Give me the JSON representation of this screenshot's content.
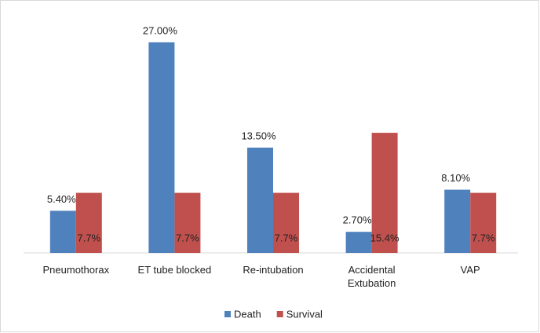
{
  "chart_data": {
    "type": "bar",
    "categories": [
      "Pneumothorax",
      "ET tube blocked",
      "Re-intubation",
      "Accidental Extubation",
      "VAP"
    ],
    "series": [
      {
        "name": "Death",
        "color": "#4f81bd",
        "values": [
          5.4,
          27,
          13.5,
          2.7,
          8.1
        ],
        "value_labels": [
          "5.40%",
          "27.00%",
          "13.50%",
          "2.70%",
          "8.10%"
        ]
      },
      {
        "name": "Survival",
        "color": "#c0504d",
        "values": [
          7.7,
          7.7,
          7.7,
          15.4,
          7.7
        ],
        "value_labels": [
          "7.7%",
          "7.7%",
          "7.7%",
          "15.4%",
          "7.7%"
        ]
      }
    ],
    "legend": "bottom"
  }
}
